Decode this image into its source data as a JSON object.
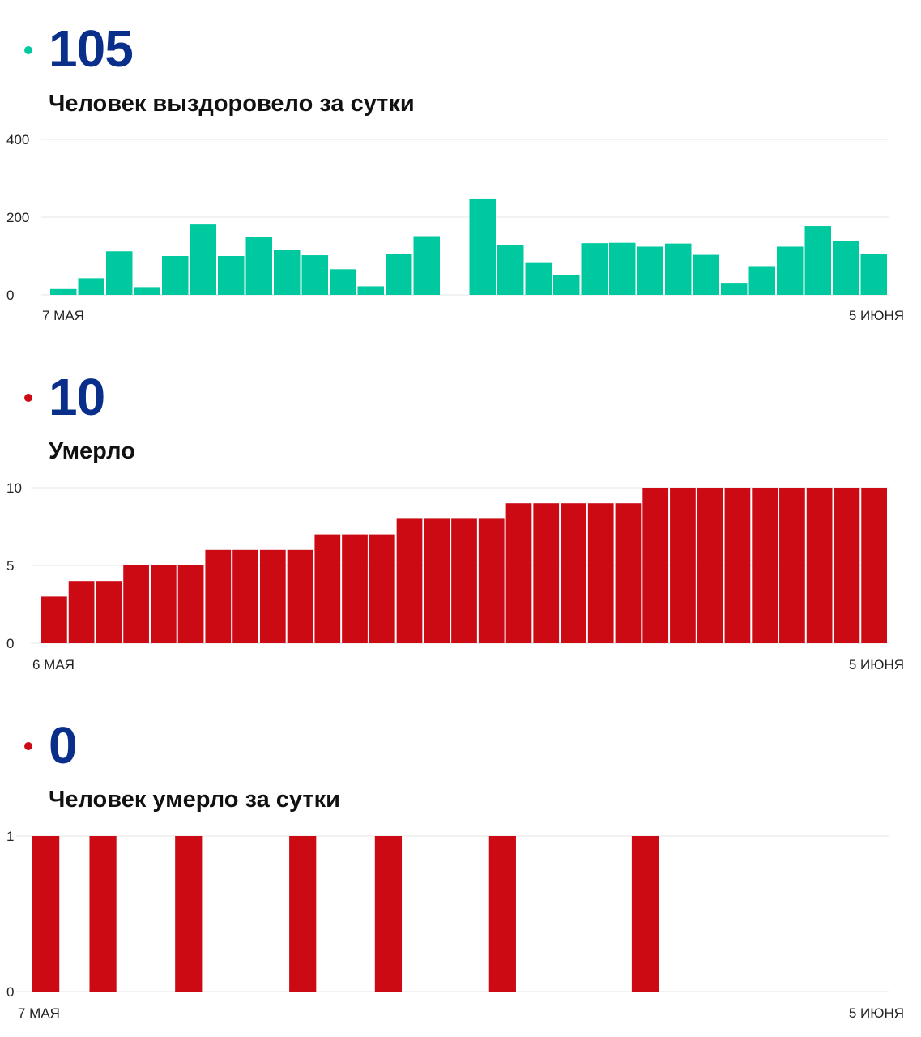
{
  "panels": [
    {
      "value": "105",
      "label": "Человек выздоровело за сутки",
      "bullet_color": "#00c9a0",
      "chart_data": {
        "type": "bar",
        "color": "#00c9a0",
        "x_start_label": "7 МАЯ",
        "x_end_label": "5 ИЮНЯ",
        "yticks": [
          0,
          200,
          400
        ],
        "ylim": [
          0,
          400
        ],
        "values": [
          15,
          43,
          112,
          20,
          100,
          181,
          100,
          150,
          116,
          102,
          66,
          22,
          105,
          151,
          null,
          246,
          128,
          82,
          52,
          133,
          134,
          124,
          132,
          103,
          31,
          74,
          124,
          177,
          139,
          105
        ]
      }
    },
    {
      "value": "10",
      "label": "Умерло",
      "bullet_color": "#cc0a14",
      "chart_data": {
        "type": "bar",
        "color": "#cc0a14",
        "x_start_label": "6 МАЯ",
        "x_end_label": "5 ИЮНЯ",
        "yticks": [
          0,
          5,
          10
        ],
        "ylim": [
          0,
          10
        ],
        "values": [
          3,
          4,
          4,
          5,
          5,
          5,
          6,
          6,
          6,
          6,
          7,
          7,
          7,
          8,
          8,
          8,
          8,
          9,
          9,
          9,
          9,
          9,
          10,
          10,
          10,
          10,
          10,
          10,
          10,
          10,
          10
        ]
      }
    },
    {
      "value": "0",
      "label": "Человек умерло за сутки",
      "bullet_color": "#cc0a14",
      "chart_data": {
        "type": "bar",
        "color": "#cc0a14",
        "x_start_label": "7 МАЯ",
        "x_end_label": "5 ИЮНЯ",
        "yticks": [
          0,
          1
        ],
        "ylim": [
          0,
          1
        ],
        "values": [
          1,
          0,
          1,
          0,
          0,
          1,
          0,
          0,
          0,
          1,
          0,
          0,
          1,
          0,
          0,
          0,
          1,
          0,
          0,
          0,
          0,
          1,
          0,
          0,
          0,
          0,
          0,
          0,
          0,
          0
        ]
      }
    }
  ]
}
